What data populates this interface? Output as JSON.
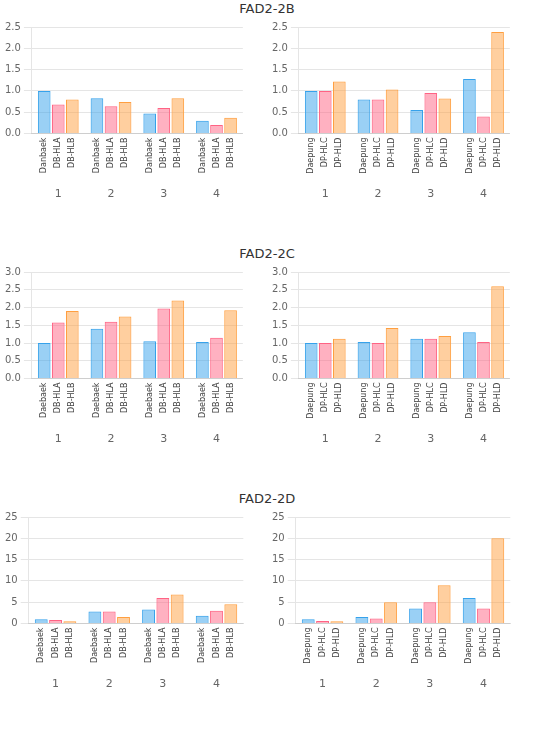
{
  "chart_data": [
    {
      "type": "bar",
      "title": "FAD2-2B",
      "categories": [
        "1",
        "2",
        "3",
        "4"
      ],
      "series": [
        {
          "name": "Danbaek",
          "values": [
            1.0,
            0.83,
            0.47,
            0.3
          ]
        },
        {
          "name": "DB-HLA",
          "values": [
            0.68,
            0.64,
            0.6,
            0.2
          ]
        },
        {
          "name": "DB-HLB",
          "values": [
            0.8,
            0.74,
            0.83,
            0.37
          ]
        }
      ],
      "ylim": [
        0,
        2.5
      ],
      "yticks": [
        {
          "value": 0,
          "label": "0.0"
        },
        {
          "value": 0.5,
          "label": "0.5"
        },
        {
          "value": 1.0,
          "label": "1.0"
        },
        {
          "value": 1.5,
          "label": "1.5"
        },
        {
          "value": 2.0,
          "label": "2.0"
        },
        {
          "value": 2.5,
          "label": "2.5"
        }
      ],
      "grid": true
    },
    {
      "type": "bar",
      "categories": [
        "1",
        "2",
        "3",
        "4"
      ],
      "series": [
        {
          "name": "Daepung",
          "values": [
            1.0,
            0.8,
            0.55,
            1.28
          ]
        },
        {
          "name": "DP-HLC",
          "values": [
            1.0,
            0.8,
            0.95,
            0.4
          ]
        },
        {
          "name": "DP-HLD",
          "values": [
            1.22,
            1.03,
            0.82,
            2.38
          ]
        }
      ],
      "ylim": [
        0,
        2.5
      ],
      "yticks": [
        {
          "value": 0,
          "label": "0.0"
        },
        {
          "value": 0.5,
          "label": "0.5"
        },
        {
          "value": 1.0,
          "label": "1.0"
        },
        {
          "value": 1.5,
          "label": "1.5"
        },
        {
          "value": 2.0,
          "label": "2.0"
        },
        {
          "value": 2.5,
          "label": "2.5"
        }
      ],
      "grid": true
    },
    {
      "type": "bar",
      "title": "FAD2-2C",
      "categories": [
        "1",
        "2",
        "3",
        "4"
      ],
      "series": [
        {
          "name": "Daebaek",
          "values": [
            1.0,
            1.4,
            1.05,
            1.03
          ]
        },
        {
          "name": "DB-HLA",
          "values": [
            1.58,
            1.6,
            1.97,
            1.15
          ]
        },
        {
          "name": "DB-HLB",
          "values": [
            1.9,
            1.75,
            2.2,
            1.92
          ]
        }
      ],
      "ylim": [
        0,
        3.0
      ],
      "yticks": [
        {
          "value": 0,
          "label": "0.0"
        },
        {
          "value": 0.5,
          "label": "0.5"
        },
        {
          "value": 1.0,
          "label": "1.0"
        },
        {
          "value": 1.5,
          "label": "1.5"
        },
        {
          "value": 2.0,
          "label": "2.0"
        },
        {
          "value": 2.5,
          "label": "2.5"
        },
        {
          "value": 3.0,
          "label": "3.0"
        }
      ],
      "grid": true
    },
    {
      "type": "bar",
      "categories": [
        "1",
        "2",
        "3",
        "4"
      ],
      "series": [
        {
          "name": "Daepung",
          "values": [
            1.0,
            1.03,
            1.12,
            1.3
          ]
        },
        {
          "name": "DP-HLC",
          "values": [
            1.0,
            1.0,
            1.12,
            1.03
          ]
        },
        {
          "name": "DP-HLD",
          "values": [
            1.12,
            1.42,
            1.2,
            2.6
          ]
        }
      ],
      "ylim": [
        0,
        3.0
      ],
      "yticks": [
        {
          "value": 0,
          "label": "0.0"
        },
        {
          "value": 0.5,
          "label": "0.5"
        },
        {
          "value": 1.0,
          "label": "1.0"
        },
        {
          "value": 1.5,
          "label": "1.5"
        },
        {
          "value": 2.0,
          "label": "2.0"
        },
        {
          "value": 2.5,
          "label": "2.5"
        },
        {
          "value": 3.0,
          "label": "3.0"
        }
      ],
      "grid": true
    },
    {
      "type": "bar",
      "title": "FAD2-2D",
      "categories": [
        "1",
        "2",
        "3",
        "4"
      ],
      "series": [
        {
          "name": "Daebaek",
          "values": [
            1.0,
            2.8,
            3.3,
            1.8
          ]
        },
        {
          "name": "DB-HLA",
          "values": [
            0.8,
            2.8,
            6.0,
            3.0
          ]
        },
        {
          "name": "DB-HLB",
          "values": [
            0.5,
            1.5,
            6.8,
            4.5
          ]
        }
      ],
      "ylim": [
        0,
        25
      ],
      "yticks": [
        0,
        5,
        10,
        15,
        20,
        25
      ],
      "grid": true
    },
    {
      "type": "bar",
      "categories": [
        "1",
        "2",
        "3",
        "4"
      ],
      "series": [
        {
          "name": "Daepung",
          "values": [
            1.0,
            1.5,
            3.5,
            6.0
          ]
        },
        {
          "name": "DP-HLC",
          "values": [
            0.6,
            1.2,
            5.0,
            3.5
          ]
        },
        {
          "name": "DP-HLD",
          "values": [
            0.5,
            5.0,
            9.0,
            20.0
          ]
        }
      ],
      "ylim": [
        0,
        25
      ],
      "yticks": [
        0,
        5,
        10,
        15,
        20,
        25
      ],
      "grid": true
    }
  ]
}
